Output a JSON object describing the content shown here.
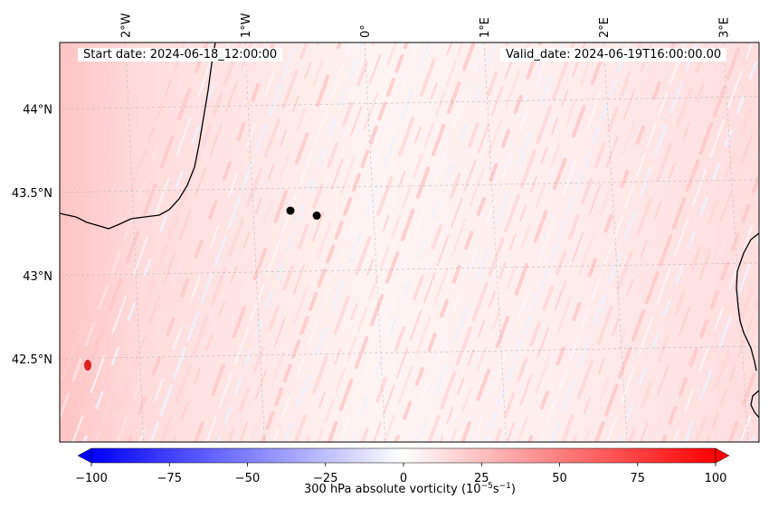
{
  "figure": {
    "start_label": "Start date: 2024-06-18_12:00:00",
    "valid_label": "Valid_date: 2024-06-19T16:00:00.00"
  },
  "map": {
    "lon_ticks": [
      "2°W",
      "1°W",
      "0°",
      "1°E",
      "2°E",
      "3°E"
    ],
    "lat_ticks": [
      "44°N",
      "43.5°N",
      "43°N",
      "42.5°N"
    ],
    "lon_range": [
      -2.55,
      3.3
    ],
    "lat_range": [
      42.0,
      44.4
    ],
    "markers": [
      {
        "lon": -0.62,
        "lat": 43.39
      },
      {
        "lon": -0.4,
        "lat": 43.36
      }
    ],
    "coast_color": "#000000",
    "grid_color": "#bbbbbb"
  },
  "colorbar": {
    "label": "300 hPa absolute vorticity (10$^{-5}$s$^{-1}$)",
    "label_main": "300 hPa absolute vorticity (10",
    "label_sup1": "−5",
    "label_mid": "s",
    "label_sup2": "−1",
    "label_end": ")",
    "ticks": [
      "−100",
      "−75",
      "−50",
      "−25",
      "0",
      "25",
      "50",
      "75",
      "100"
    ],
    "tick_values": [
      -100,
      -75,
      -50,
      -25,
      0,
      25,
      50,
      75,
      100
    ],
    "vmin": -100,
    "vmax": 100,
    "cmap": "bwr",
    "low_color": "#0000ff",
    "high_color": "#ff0000"
  }
}
